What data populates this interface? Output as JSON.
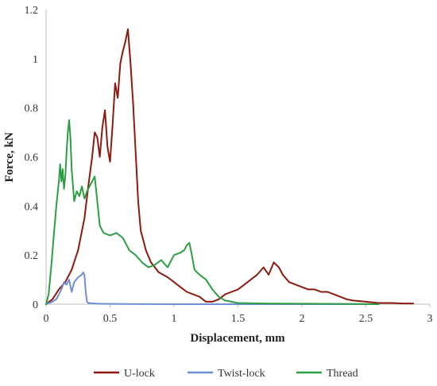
{
  "chart_data": {
    "type": "line",
    "xlabel": "Displacement, mm",
    "ylabel": "Force, kN",
    "xlim": [
      0,
      3
    ],
    "ylim": [
      0,
      1.2
    ],
    "x_ticks": [
      "0",
      "0.5",
      "1",
      "1.5",
      "2",
      "2.5",
      "3"
    ],
    "y_ticks": [
      "0",
      "0.2",
      "0.4",
      "0.6",
      "0.8",
      "1",
      "1.2"
    ],
    "grid": false,
    "legend_position": "bottom",
    "series": [
      {
        "name": "U-lock",
        "color": "#8B1A10",
        "points": [
          [
            0,
            0
          ],
          [
            0.05,
            0.02
          ],
          [
            0.1,
            0.06
          ],
          [
            0.15,
            0.09
          ],
          [
            0.2,
            0.14
          ],
          [
            0.25,
            0.22
          ],
          [
            0.3,
            0.35
          ],
          [
            0.33,
            0.48
          ],
          [
            0.36,
            0.6
          ],
          [
            0.38,
            0.7
          ],
          [
            0.4,
            0.68
          ],
          [
            0.42,
            0.6
          ],
          [
            0.44,
            0.72
          ],
          [
            0.46,
            0.79
          ],
          [
            0.48,
            0.64
          ],
          [
            0.5,
            0.58
          ],
          [
            0.52,
            0.73
          ],
          [
            0.54,
            0.9
          ],
          [
            0.56,
            0.84
          ],
          [
            0.58,
            0.98
          ],
          [
            0.6,
            1.03
          ],
          [
            0.62,
            1.07
          ],
          [
            0.64,
            1.12
          ],
          [
            0.66,
            0.98
          ],
          [
            0.68,
            0.82
          ],
          [
            0.7,
            0.62
          ],
          [
            0.72,
            0.42
          ],
          [
            0.74,
            0.3
          ],
          [
            0.76,
            0.26
          ],
          [
            0.78,
            0.22
          ],
          [
            0.82,
            0.17
          ],
          [
            0.88,
            0.13
          ],
          [
            0.95,
            0.11
          ],
          [
            1.0,
            0.09
          ],
          [
            1.05,
            0.07
          ],
          [
            1.1,
            0.05
          ],
          [
            1.15,
            0.04
          ],
          [
            1.2,
            0.03
          ],
          [
            1.25,
            0.01
          ],
          [
            1.3,
            0.01
          ],
          [
            1.35,
            0.02
          ],
          [
            1.4,
            0.04
          ],
          [
            1.45,
            0.05
          ],
          [
            1.5,
            0.06
          ],
          [
            1.55,
            0.08
          ],
          [
            1.6,
            0.1
          ],
          [
            1.65,
            0.12
          ],
          [
            1.7,
            0.15
          ],
          [
            1.74,
            0.12
          ],
          [
            1.78,
            0.17
          ],
          [
            1.82,
            0.15
          ],
          [
            1.85,
            0.12
          ],
          [
            1.9,
            0.09
          ],
          [
            1.95,
            0.08
          ],
          [
            2.0,
            0.07
          ],
          [
            2.05,
            0.06
          ],
          [
            2.1,
            0.06
          ],
          [
            2.15,
            0.05
          ],
          [
            2.2,
            0.05
          ],
          [
            2.25,
            0.04
          ],
          [
            2.3,
            0.03
          ],
          [
            2.35,
            0.02
          ],
          [
            2.4,
            0.015
          ],
          [
            2.5,
            0.01
          ],
          [
            2.6,
            0.005
          ],
          [
            2.7,
            0.005
          ],
          [
            2.8,
            0.003
          ],
          [
            2.87,
            0.003
          ]
        ]
      },
      {
        "name": "Twist-lock",
        "color": "#6F8FD4",
        "points": [
          [
            0,
            0
          ],
          [
            0.05,
            0.01
          ],
          [
            0.08,
            0.02
          ],
          [
            0.1,
            0.04
          ],
          [
            0.12,
            0.06
          ],
          [
            0.14,
            0.09
          ],
          [
            0.16,
            0.08
          ],
          [
            0.18,
            0.1
          ],
          [
            0.2,
            0.05
          ],
          [
            0.22,
            0.09
          ],
          [
            0.25,
            0.11
          ],
          [
            0.28,
            0.12
          ],
          [
            0.29,
            0.13
          ],
          [
            0.3,
            0.12
          ],
          [
            0.31,
            0.05
          ],
          [
            0.32,
            0.01
          ],
          [
            0.33,
            0.005
          ],
          [
            0.4,
            0.002
          ],
          [
            0.6,
            0.001
          ],
          [
            1.0,
            0
          ],
          [
            1.5,
            0
          ],
          [
            2.0,
            0
          ],
          [
            2.5,
            0
          ],
          [
            2.6,
            0
          ]
        ]
      },
      {
        "name": "Thread",
        "color": "#2E9E44",
        "points": [
          [
            0,
            0
          ],
          [
            0.02,
            0.04
          ],
          [
            0.04,
            0.15
          ],
          [
            0.06,
            0.28
          ],
          [
            0.08,
            0.4
          ],
          [
            0.1,
            0.5
          ],
          [
            0.11,
            0.57
          ],
          [
            0.12,
            0.5
          ],
          [
            0.13,
            0.55
          ],
          [
            0.14,
            0.47
          ],
          [
            0.15,
            0.52
          ],
          [
            0.16,
            0.62
          ],
          [
            0.17,
            0.7
          ],
          [
            0.18,
            0.75
          ],
          [
            0.19,
            0.68
          ],
          [
            0.2,
            0.55
          ],
          [
            0.22,
            0.42
          ],
          [
            0.24,
            0.46
          ],
          [
            0.26,
            0.44
          ],
          [
            0.28,
            0.48
          ],
          [
            0.3,
            0.43
          ],
          [
            0.32,
            0.46
          ],
          [
            0.34,
            0.48
          ],
          [
            0.36,
            0.5
          ],
          [
            0.38,
            0.52
          ],
          [
            0.4,
            0.42
          ],
          [
            0.42,
            0.32
          ],
          [
            0.45,
            0.29
          ],
          [
            0.5,
            0.28
          ],
          [
            0.55,
            0.29
          ],
          [
            0.6,
            0.27
          ],
          [
            0.65,
            0.22
          ],
          [
            0.7,
            0.2
          ],
          [
            0.75,
            0.17
          ],
          [
            0.8,
            0.15
          ],
          [
            0.85,
            0.16
          ],
          [
            0.9,
            0.18
          ],
          [
            0.95,
            0.15
          ],
          [
            1.0,
            0.2
          ],
          [
            1.05,
            0.21
          ],
          [
            1.08,
            0.22
          ],
          [
            1.1,
            0.24
          ],
          [
            1.12,
            0.25
          ],
          [
            1.14,
            0.2
          ],
          [
            1.16,
            0.14
          ],
          [
            1.2,
            0.12
          ],
          [
            1.25,
            0.1
          ],
          [
            1.3,
            0.06
          ],
          [
            1.35,
            0.03
          ],
          [
            1.4,
            0.015
          ],
          [
            1.45,
            0.01
          ],
          [
            1.5,
            0.005
          ],
          [
            1.7,
            0.003
          ],
          [
            2.0,
            0.002
          ],
          [
            2.5,
            0.001
          ],
          [
            2.6,
            0
          ]
        ]
      }
    ]
  }
}
